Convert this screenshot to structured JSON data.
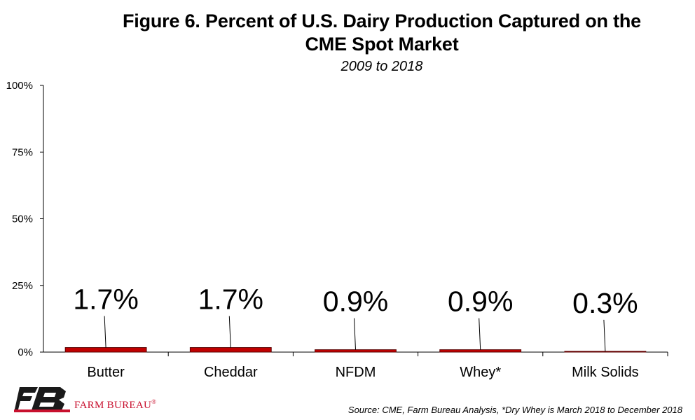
{
  "title_line1": "Figure 6. Percent of U.S. Dairy Production Captured on the",
  "title_line2": "CME Spot Market",
  "subtitle": "2009 to 2018",
  "brand_name": "FARM BUREAU",
  "brand_mark": "®",
  "source_note": "Source: CME, Farm Bureau Analysis, *Dry Whey is March 2018 to December 2018",
  "colors": {
    "bar": "#c00000",
    "bar_outline": "#5a0000",
    "brand_red": "#c8102e",
    "logo_dark": "#1a1a1a"
  },
  "chart_data": {
    "type": "bar",
    "title": "Figure 6. Percent of U.S. Dairy Production Captured on the CME Spot Market",
    "subtitle": "2009 to 2018",
    "categories": [
      "Butter",
      "Cheddar",
      "NFDM",
      "Whey*",
      "Milk Solids"
    ],
    "values": [
      1.7,
      1.7,
      0.9,
      0.9,
      0.3
    ],
    "data_labels": [
      "1.7%",
      "1.7%",
      "0.9%",
      "0.9%",
      "0.3%"
    ],
    "yticks": [
      0,
      25,
      50,
      75,
      100
    ],
    "ytick_labels": [
      "0%",
      "25%",
      "50%",
      "75%",
      "100%"
    ],
    "ylim": [
      0,
      100
    ],
    "xlabel": "",
    "ylabel": "",
    "grid": false,
    "legend": false
  }
}
